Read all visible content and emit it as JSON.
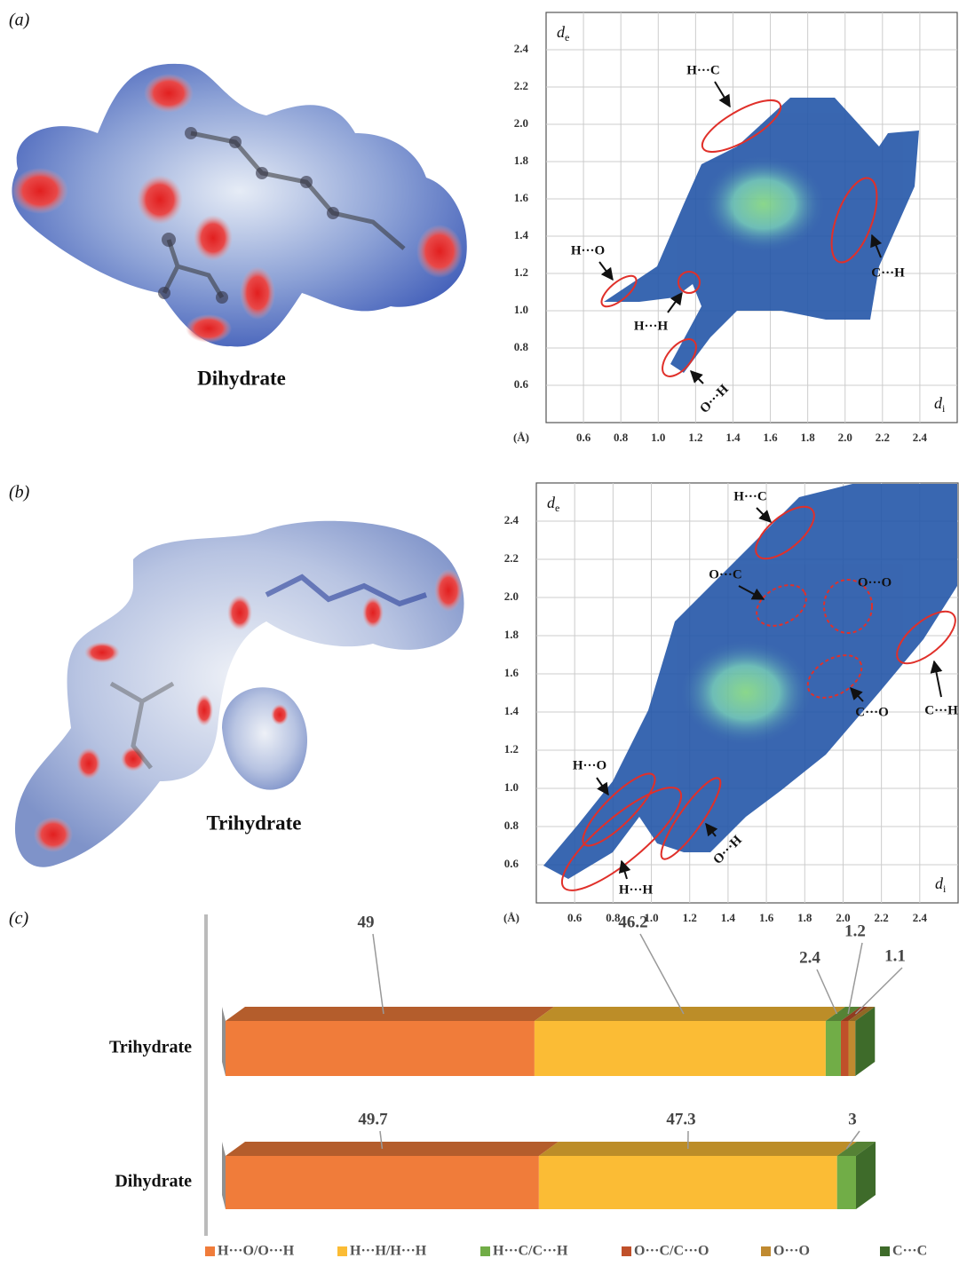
{
  "panels": [
    {
      "label": "(a)",
      "molecule": "Dihydrate"
    },
    {
      "label": "(b)",
      "molecule": "Trihydrate"
    },
    {
      "label": "(c)"
    }
  ],
  "chart_data": [
    {
      "type": "fingerprint",
      "y_label": "d",
      "y_label_sub": "e",
      "x_label": "d",
      "x_label_sub": "i",
      "unit": "(Å)",
      "xlim": [
        0.4,
        2.6
      ],
      "ylim": [
        0.4,
        2.6
      ],
      "xticks": [
        0.6,
        0.8,
        {
          "value": 1,
          "label": "1.0"
        },
        1.2,
        1.4,
        1.6,
        1.8,
        {
          "value": 2,
          "label": "2.0"
        },
        2.2,
        2.4
      ],
      "yticks": [
        0.6,
        0.8,
        {
          "value": 1,
          "label": "1.0"
        },
        1.2,
        1.4,
        1.6,
        1.8,
        {
          "value": 2,
          "label": "2.0"
        },
        2.2,
        2.4
      ],
      "grid": true,
      "annotations": [
        "H···C",
        "C···H",
        "H···O",
        "H···H",
        "O···H"
      ]
    },
    {
      "type": "fingerprint",
      "y_label": "d",
      "y_label_sub": "e",
      "x_label": "d",
      "x_label_sub": "i",
      "unit": "(Å)",
      "xlim": [
        0.4,
        2.6
      ],
      "ylim": [
        0.4,
        2.6
      ],
      "xticks": [
        0.6,
        0.8,
        {
          "value": 1,
          "label": "1.0"
        },
        1.2,
        1.4,
        1.6,
        1.8,
        {
          "value": 2,
          "label": "2.0"
        },
        2.2,
        2.4
      ],
      "yticks": [
        0.6,
        0.8,
        {
          "value": 1,
          "label": "1.0"
        },
        1.2,
        1.4,
        1.6,
        1.8,
        {
          "value": 2,
          "label": "2.0"
        },
        2.2,
        2.4
      ],
      "grid": true,
      "annotations": [
        "H···C",
        "O···C",
        "O···O",
        "C···O",
        "C···H",
        "H···O",
        "H···H",
        "O···H"
      ]
    },
    {
      "type": "stacked-bar-h",
      "categories": [
        "Trihydrate",
        "Dihydrate"
      ],
      "xlim": [
        0,
        100
      ],
      "series": [
        {
          "name": "H···O/O···H",
          "color": "#f07c3a",
          "values": [
            49,
            49.7
          ]
        },
        {
          "name": "H···H/H···H",
          "color": "#fbbc35",
          "values": [
            46.2,
            47.3
          ]
        },
        {
          "name": "H···C/C···H",
          "color": "#71ad47",
          "values": [
            2.4,
            3
          ]
        },
        {
          "name": "O···C/C···O",
          "color": "#c0502a",
          "values": [
            1.2,
            null
          ]
        },
        {
          "name": "O···O",
          "color": "#c08a30",
          "values": [
            1.1,
            null
          ]
        },
        {
          "name": "C···C",
          "color": "#3e6b2a",
          "values": [
            null,
            null
          ]
        }
      ]
    }
  ]
}
